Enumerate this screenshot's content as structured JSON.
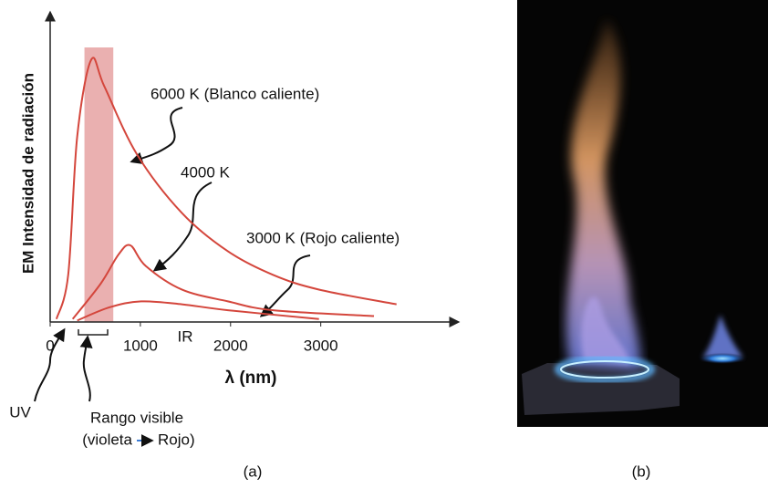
{
  "chart_data": {
    "type": "line",
    "y_label": "EM Intensidad de radiación",
    "x_label": "λ (nm)",
    "xlim": [
      0,
      4500
    ],
    "xticks": [
      0,
      1000,
      2000,
      3000
    ],
    "ylim": [
      0,
      100
    ],
    "shaded_band": [
      380,
      700
    ],
    "shaded_color": "#eab0b0",
    "series": [
      {
        "name": "6000 K (Blanco caliente)",
        "color": "#d4463c",
        "x": [
          70,
          200,
          300,
          455,
          600,
          960,
          1460,
          1970,
          2470,
          2980,
          3840
        ],
        "values": [
          1,
          16,
          63,
          89,
          80,
          57,
          37,
          24,
          16,
          11,
          6
        ]
      },
      {
        "name": "4000 K",
        "color": "#d4463c",
        "x": [
          250,
          560,
          760,
          890,
          1060,
          1460,
          1970,
          2470,
          3590
        ],
        "values": [
          1,
          13,
          23,
          26,
          19,
          11,
          7,
          4,
          2
        ]
      },
      {
        "name": "3000 K (Rojo caliente)",
        "color": "#d4463c",
        "x": [
          300,
          660,
          1010,
          1460,
          1970,
          2980
        ],
        "values": [
          0.5,
          5,
          7,
          6,
          4,
          1
        ]
      }
    ],
    "annotations": {
      "ir": "IR",
      "uv": "UV",
      "visible": "Rango visible",
      "visible_from": "(violeta",
      "visible_to": "Rojo)"
    },
    "panel_labels": [
      "(a)",
      "(b)"
    ]
  }
}
